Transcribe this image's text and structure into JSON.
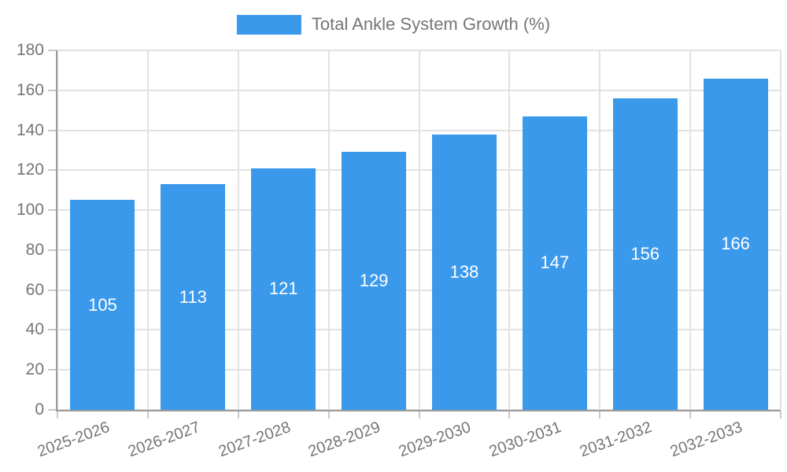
{
  "legend": {
    "label": "Total Ankle System Growth (%)"
  },
  "colors": {
    "bar": "#3b99ec",
    "bar_label": "#ffffff",
    "grid": "#e2e2e2",
    "axis": "#9a9a9a",
    "tick": "#c9c9c9",
    "tick_label": "#757575"
  },
  "chart_data": {
    "type": "bar",
    "title": "",
    "xlabel": "",
    "ylabel": "",
    "series_name": "Total Ankle System Growth (%)",
    "categories": [
      "2025-2026",
      "2026-2027",
      "2027-2028",
      "2028-2029",
      "2029-2030",
      "2030-2031",
      "2031-2032",
      "2032-2033"
    ],
    "values": [
      105,
      113,
      121,
      129,
      138,
      147,
      156,
      166
    ],
    "ylim": [
      0,
      180
    ],
    "yticks": [
      0,
      20,
      40,
      60,
      80,
      100,
      120,
      140,
      160,
      180
    ],
    "grid": true,
    "legend_position": "top-center",
    "bar_label_position": "center-inside",
    "bar_label_color": "#ffffff",
    "x_label_rotation_deg": -20
  }
}
